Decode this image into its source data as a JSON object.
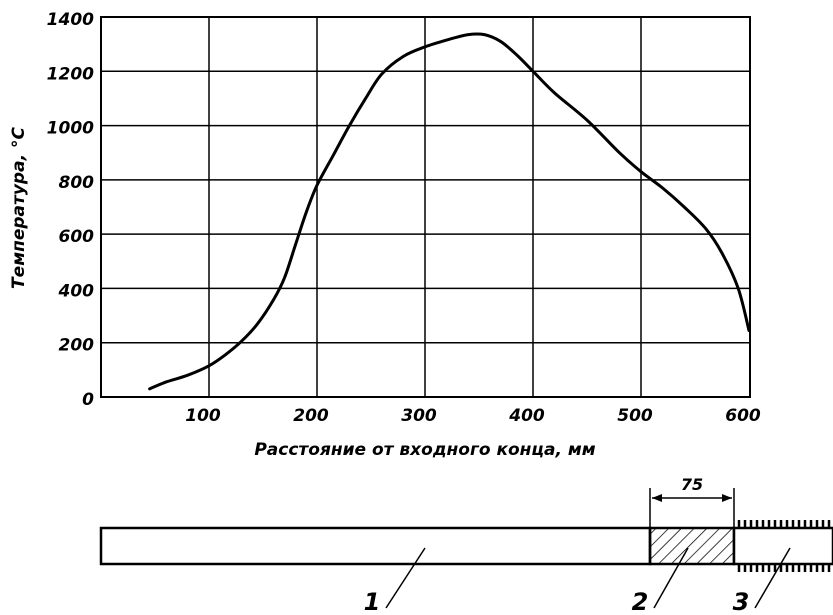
{
  "chart_data": {
    "type": "line",
    "title": "",
    "xlabel": "Расстояние от входного конца, мм",
    "ylabel": "Температура, °С",
    "xlim": [
      0,
      600
    ],
    "ylim": [
      0,
      1400
    ],
    "x_ticks": [
      "100",
      "200",
      "300",
      "400",
      "500",
      "600"
    ],
    "y_ticks": [
      "0",
      "200",
      "400",
      "600",
      "800",
      "1000",
      "1200",
      "1400"
    ],
    "grid": true,
    "series": [
      {
        "x": [
          45,
          60,
          80,
          100,
          115,
          130,
          145,
          160,
          170,
          180,
          190,
          200,
          215,
          230,
          245,
          260,
          280,
          300,
          320,
          340,
          355,
          370,
          385,
          400,
          420,
          450,
          480,
          500,
          520,
          540,
          560,
          575,
          590,
          600
        ],
        "y": [
          30,
          55,
          80,
          115,
          155,
          205,
          270,
          360,
          440,
          560,
          680,
          780,
          890,
          1000,
          1100,
          1190,
          1255,
          1290,
          1315,
          1335,
          1335,
          1310,
          1260,
          1200,
          1120,
          1020,
          900,
          830,
          770,
          700,
          620,
          530,
          400,
          245
        ]
      }
    ]
  },
  "schematic": {
    "dimension_label": "75",
    "callouts": [
      "1",
      "2",
      "3"
    ]
  }
}
